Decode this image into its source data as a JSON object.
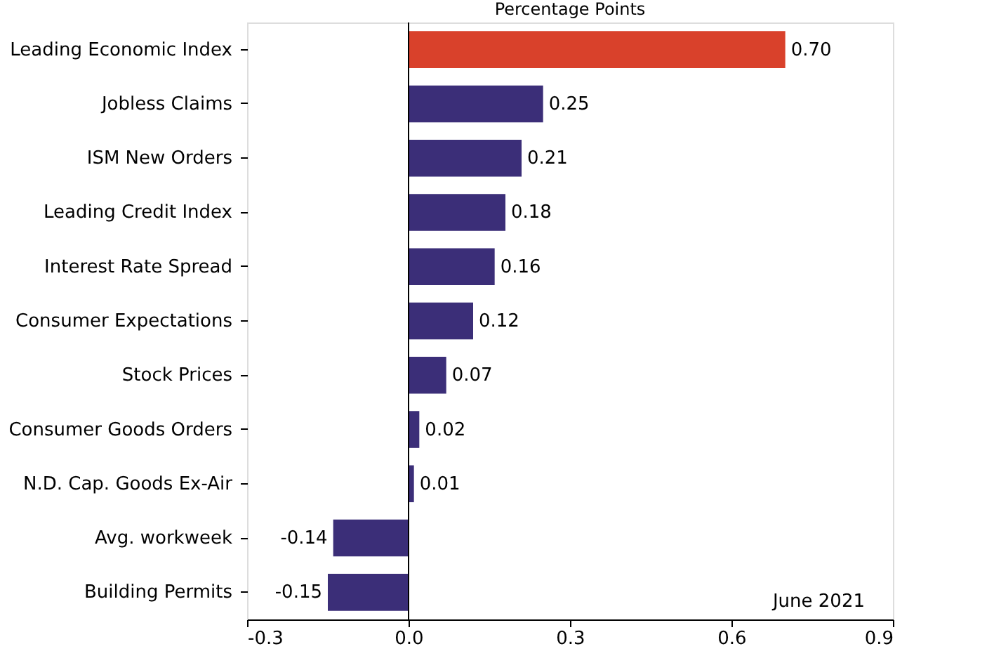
{
  "chart_data": {
    "type": "bar",
    "orientation": "horizontal",
    "title": "Percentage Points",
    "categories": [
      "Leading Economic Index",
      "Jobless Claims",
      "ISM New Orders",
      "Leading Credit Index",
      "Interest Rate Spread",
      "Consumer Expectations",
      "Stock Prices",
      "Consumer Goods Orders",
      "N.D. Cap. Goods Ex-Air",
      "Avg. workweek",
      "Building Permits"
    ],
    "values": [
      0.7,
      0.25,
      0.21,
      0.18,
      0.16,
      0.12,
      0.07,
      0.02,
      0.01,
      -0.14,
      -0.15
    ],
    "value_labels": [
      "0.70",
      "0.25",
      "0.21",
      "0.18",
      "0.16",
      "0.12",
      "0.07",
      "0.02",
      "0.01",
      "-0.14",
      "-0.15"
    ],
    "colors": [
      "#d9412b",
      "#3b2e78",
      "#3b2e78",
      "#3b2e78",
      "#3b2e78",
      "#3b2e78",
      "#3b2e78",
      "#3b2e78",
      "#3b2e78",
      "#3b2e78",
      "#3b2e78"
    ],
    "xlim": [
      -0.3,
      0.9
    ],
    "xticks": [
      -0.3,
      {
        "value": 0,
        "label": "0.0"
      },
      0.3,
      0.6,
      0.9
    ],
    "ref_lines": [
      {
        "axis": "x",
        "value": 0,
        "color": "#000000"
      }
    ],
    "annotations": [
      "June 2021"
    ],
    "grid": false
  }
}
